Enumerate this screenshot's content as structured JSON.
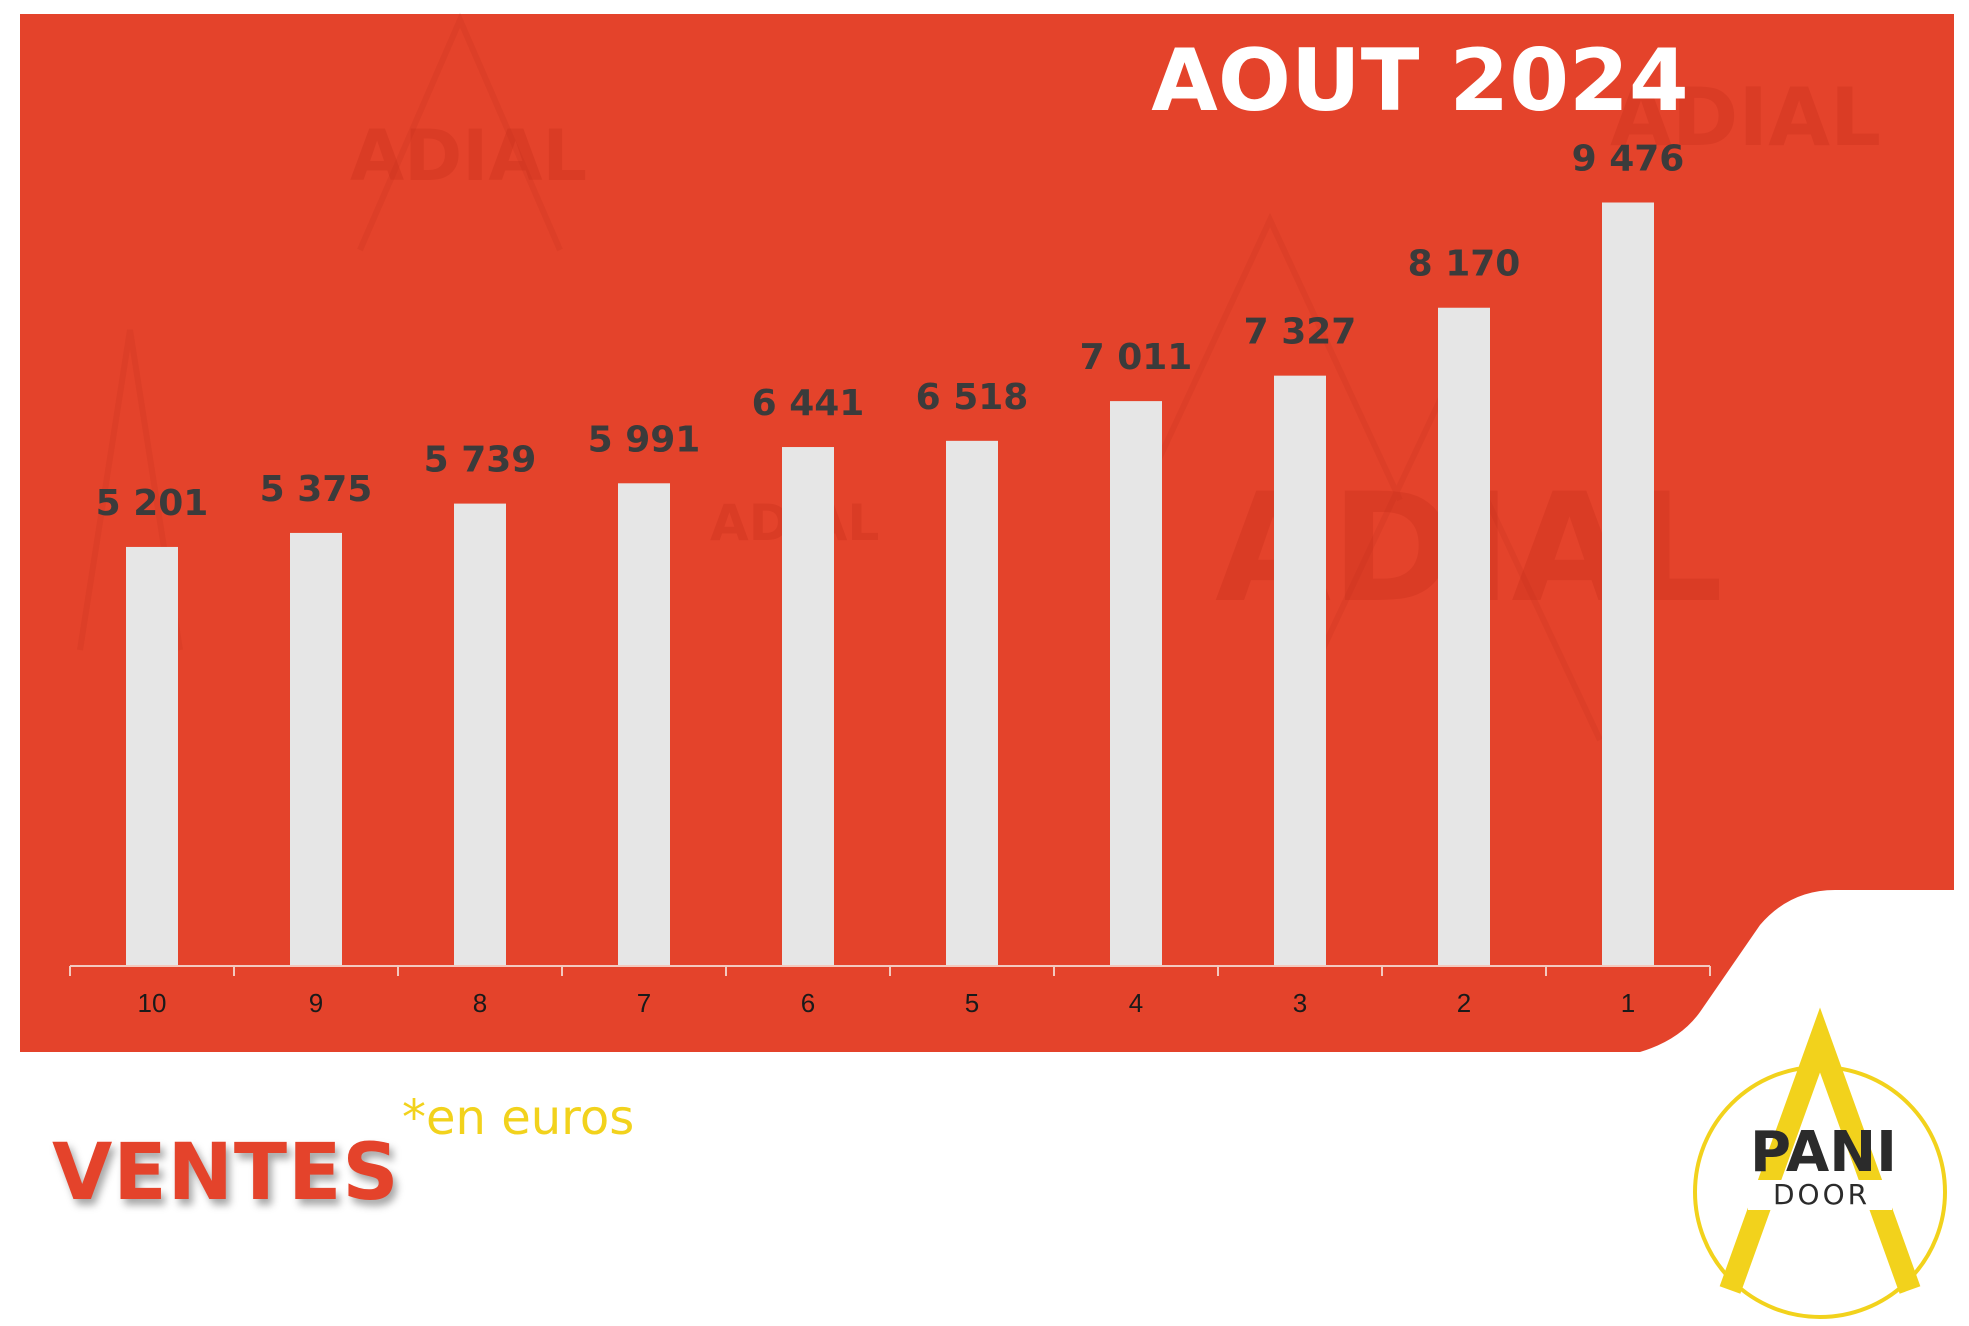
{
  "chart_data": {
    "type": "bar",
    "title": "AOUT 2024",
    "categories": [
      "10",
      "9",
      "8",
      "7",
      "6",
      "5",
      "4",
      "3",
      "2",
      "1"
    ],
    "values": [
      5201,
      5375,
      5739,
      5991,
      6441,
      6518,
      7011,
      7327,
      8170,
      9476
    ],
    "value_labels": [
      "5 201",
      "5 375",
      "5 739",
      "5 991",
      "6 441",
      "6 518",
      "7 011",
      "7 327",
      "8 170",
      "9 476"
    ],
    "xlabel": "",
    "ylabel": "",
    "ylim": [
      0,
      10500
    ],
    "grid": false,
    "legend": "none"
  },
  "footer": {
    "label": "VENTES",
    "unit_note": "*en euros"
  },
  "watermark": "ADIAL",
  "logo": {
    "line1": "PANI",
    "line2": "DOOR"
  },
  "colors": {
    "panel": "#e4432b",
    "bar": "#e6e6e6",
    "value_label": "#3b3b3b",
    "title": "#ffffff",
    "accent_yellow": "#f2d21c"
  }
}
